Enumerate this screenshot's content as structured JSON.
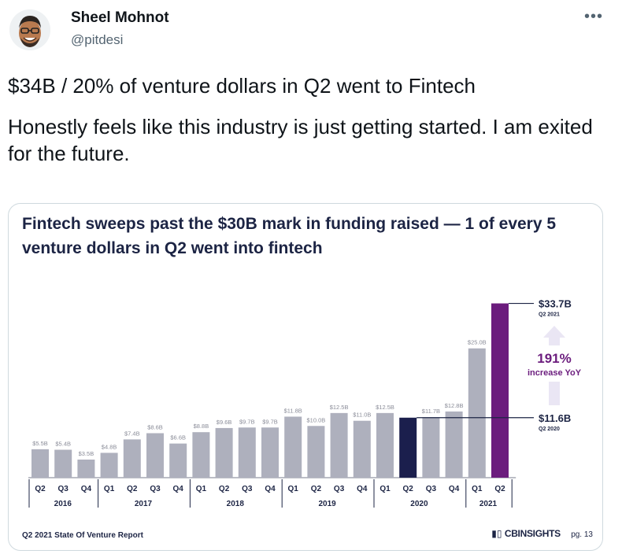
{
  "tweet": {
    "author_name": "Sheel Mohnot",
    "author_handle": "@pitdesi",
    "more_icon": "more-icon",
    "text_line1": "$34B / 20% of venture dollars in Q2 went to Fintech",
    "text_line2": "Honestly feels like this industry is just getting started. I am exited for the future."
  },
  "card": {
    "footer_left": "Q2 2021 State Of Venture Report",
    "brand": "CBINSIGHTS",
    "page": "pg. 13"
  },
  "colors": {
    "bar": "#aeb0bd",
    "highlight_2020": "#1b1f4d",
    "highlight_2021": "#6b1c7d",
    "title": "#1c2444"
  },
  "chart_data": {
    "type": "bar",
    "title": "Fintech sweeps past the $30B mark in funding raised — 1 of every 5 venture dollars in Q2 went into fintech",
    "xlabel": "",
    "ylabel": "",
    "ylim": [
      0,
      35
    ],
    "categories": [
      "Q2",
      "Q3",
      "Q4",
      "Q1",
      "Q2",
      "Q3",
      "Q4",
      "Q1",
      "Q2",
      "Q3",
      "Q4",
      "Q1",
      "Q2",
      "Q3",
      "Q4",
      "Q1",
      "Q2",
      "Q3",
      "Q4",
      "Q1",
      "Q2"
    ],
    "values": [
      5.5,
      5.4,
      3.5,
      4.8,
      7.4,
      8.6,
      6.6,
      8.8,
      9.6,
      9.7,
      9.7,
      11.8,
      10.0,
      12.5,
      11.0,
      12.5,
      11.6,
      11.7,
      12.8,
      25.0,
      33.7
    ],
    "labels": [
      "$5.5B",
      "$5.4B",
      "$3.5B",
      "$4.8B",
      "$7.4B",
      "$8.6B",
      "$6.6B",
      "$8.8B",
      "$9.6B",
      "$9.7B",
      "$9.7B",
      "$11.8B",
      "$10.0B",
      "$12.5B",
      "$11.0B",
      "$12.5B",
      "",
      "$11.7B",
      "$12.8B",
      "$25.0B",
      ""
    ],
    "years": [
      {
        "label": "2016",
        "count": 3
      },
      {
        "label": "2017",
        "count": 4
      },
      {
        "label": "2018",
        "count": 4
      },
      {
        "label": "2019",
        "count": 4
      },
      {
        "label": "2020",
        "count": 4
      },
      {
        "label": "2021",
        "count": 2
      }
    ],
    "highlights": [
      {
        "index": 16,
        "value_label": "$11.6B",
        "period_label": "Q2 2020"
      },
      {
        "index": 20,
        "value_label": "$33.7B",
        "period_label": "Q2 2021"
      }
    ],
    "annotation": {
      "pct": "191%",
      "text": "increase YoY"
    }
  }
}
